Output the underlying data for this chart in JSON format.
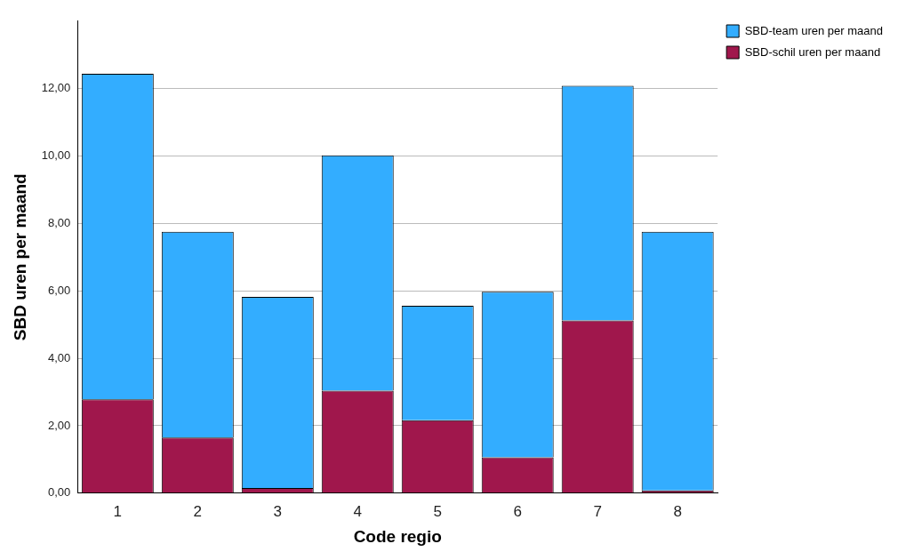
{
  "chart_data": {
    "type": "bar",
    "xlabel": "Code regio",
    "ylabel": "SBD uren per maand",
    "categories": [
      "1",
      "2",
      "3",
      "4",
      "5",
      "6",
      "7",
      "8"
    ],
    "stacked": true,
    "series": [
      {
        "name": "SBD-schil uren per maand",
        "color": "#a0174c",
        "values": [
          2.78,
          1.65,
          0.15,
          3.04,
          2.16,
          1.06,
          5.12,
          0.08
        ]
      },
      {
        "name": "SBD-team uren per maand",
        "color": "#33adff",
        "values": [
          9.66,
          6.1,
          5.67,
          6.98,
          3.4,
          4.91,
          6.96,
          7.67
        ]
      }
    ],
    "ylim": [
      0,
      14
    ],
    "yticks": [
      {
        "value": 0,
        "label": "0,00"
      },
      {
        "value": 2,
        "label": "2,00"
      },
      {
        "value": 4,
        "label": "4,00"
      },
      {
        "value": 6,
        "label": "6,00"
      },
      {
        "value": 8,
        "label": "8,00"
      },
      {
        "value": 10,
        "label": "10,00"
      },
      {
        "value": 12,
        "label": "12,00"
      }
    ],
    "grid": "y",
    "legend": "top right"
  }
}
